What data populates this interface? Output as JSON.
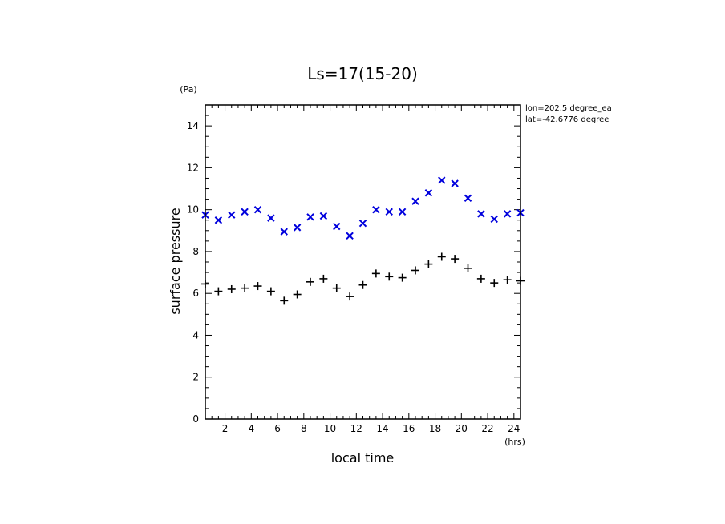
{
  "chart_data": {
    "type": "scatter",
    "title": "Ls=17(15-20)",
    "xlabel": "local time",
    "ylabel": "surface pressure",
    "x_unit": "(hrs)",
    "y_unit": "(Pa)",
    "annotations": [
      "lon=202.5 degree_ea",
      "lat=-42.6776 degree"
    ],
    "xlim": [
      0.5,
      24.5
    ],
    "ylim": [
      0,
      15
    ],
    "x_ticks": [
      2,
      4,
      6,
      8,
      10,
      12,
      14,
      16,
      18,
      20,
      22,
      24
    ],
    "x_tick_labels": [
      "2",
      "4",
      "6",
      "8",
      "10",
      "12",
      "14",
      "16",
      "18",
      "20",
      "22",
      "24"
    ],
    "y_ticks": [
      0,
      2,
      4,
      6,
      8,
      10,
      12,
      14
    ],
    "y_tick_labels": [
      "0",
      "2",
      "4",
      "6",
      "8",
      "10",
      "12",
      "14"
    ],
    "grid": false,
    "x": [
      0.5,
      1.5,
      2.5,
      3.5,
      4.5,
      5.5,
      6.5,
      7.5,
      8.5,
      9.5,
      10.5,
      11.5,
      12.5,
      13.5,
      14.5,
      15.5,
      16.5,
      17.5,
      18.5,
      19.5,
      20.5,
      21.5,
      22.5,
      23.5,
      24.5
    ],
    "series": [
      {
        "marker": "x",
        "color": "#0000dd",
        "values": [
          9.75,
          9.5,
          9.75,
          9.9,
          10.0,
          9.6,
          8.95,
          9.15,
          9.65,
          9.7,
          9.2,
          8.75,
          9.35,
          10.0,
          9.9,
          9.9,
          10.4,
          10.8,
          11.4,
          11.25,
          10.55,
          9.8,
          9.55,
          9.8,
          9.85
        ]
      },
      {
        "marker": "+",
        "color": "#000000",
        "values": [
          6.45,
          6.1,
          6.2,
          6.25,
          6.35,
          6.1,
          5.65,
          5.95,
          6.55,
          6.7,
          6.25,
          5.85,
          6.4,
          6.95,
          6.8,
          6.75,
          7.1,
          7.4,
          7.75,
          7.65,
          7.2,
          6.7,
          6.5,
          6.65,
          6.6
        ]
      }
    ]
  }
}
